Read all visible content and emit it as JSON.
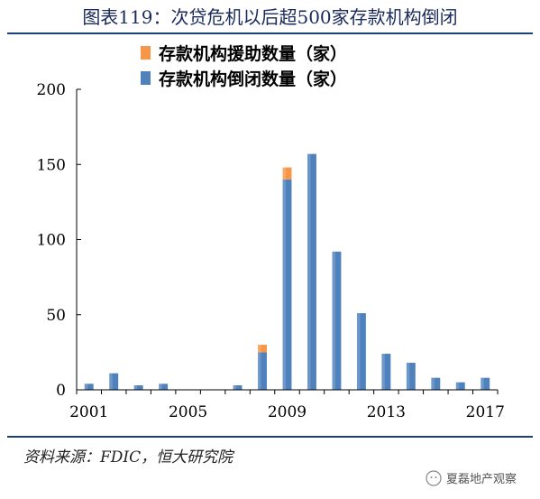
{
  "title": "图表119：次贷危机以后超500家存款机构倒闭",
  "source": "资料来源：FDIC，恒大研究院",
  "watermark": "夏磊地产观察",
  "colors": {
    "closed": "#4f81bd",
    "assisted": "#f79646",
    "axis": "#000000",
    "rule": "#1f3f7a"
  },
  "chart_data": {
    "type": "bar",
    "stacked": true,
    "categories": [
      "2001",
      "2002",
      "2003",
      "2004",
      "2005",
      "2006",
      "2007",
      "2008",
      "2009",
      "2010",
      "2011",
      "2012",
      "2013",
      "2014",
      "2015",
      "2016",
      "2017"
    ],
    "x_tick_labels": [
      "2001",
      "2005",
      "2009",
      "2013",
      "2017"
    ],
    "series": [
      {
        "name": "存款机构倒闭数量（家）",
        "color": "#4f81bd",
        "values": [
          4,
          11,
          3,
          4,
          0,
          0,
          3,
          25,
          140,
          157,
          92,
          51,
          24,
          18,
          8,
          5,
          8
        ]
      },
      {
        "name": "存款机构援助数量（家）",
        "color": "#f79646",
        "values": [
          0,
          0,
          0,
          0,
          0,
          0,
          0,
          5,
          8,
          0,
          0,
          0,
          0,
          0,
          0,
          0,
          0
        ]
      }
    ],
    "legend_order": [
      "存款机构援助数量（家）",
      "存款机构倒闭数量（家）"
    ],
    "legend_position": "top",
    "ylim": [
      0,
      200
    ],
    "yticks": [
      0,
      50,
      100,
      150,
      200
    ],
    "grid": false
  }
}
